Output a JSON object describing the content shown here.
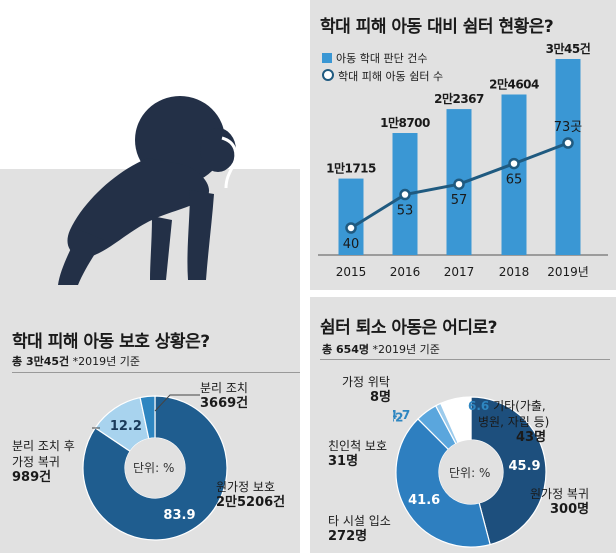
{
  "shelter_chart": {
    "title": "학대 피해 아동 대비 쉼터 현황은?",
    "legend": [
      {
        "label": "아동 학대 판단 건수",
        "color": "#3a97d4"
      },
      {
        "label": "학대 피해 아동 쉼터 수",
        "color": "#1f5a80"
      }
    ],
    "years": [
      "2015",
      "2016",
      "2017",
      "2018",
      "2019년"
    ],
    "case_labels": [
      "1만1715",
      "1만8700",
      "2만2367",
      "2만4604",
      "3만45건"
    ],
    "shelter_labels": [
      "40",
      "53",
      "57",
      "65",
      "73곳"
    ]
  },
  "protection_chart": {
    "title": "학대 피해 아동 보호 상황은?",
    "total_prefix": "총 3만45건",
    "total_note": "*2019년 기준",
    "unit": "단위: %",
    "callouts": {
      "separation": {
        "name": "분리 조치",
        "value": "3669건"
      },
      "reunion": {
        "name1": "분리 조치 후",
        "name2": "가정 복귀",
        "value": "989건"
      },
      "home": {
        "name": "원가정 보호",
        "value": "2만5206건"
      }
    }
  },
  "exit_chart": {
    "title": "쉼터 퇴소 아동은 어디로?",
    "total_prefix": "총 654명",
    "total_note": "*2019년 기준",
    "unit": "단위: %",
    "callouts": {
      "foster": {
        "name": "가정 위탁",
        "value": "8명"
      },
      "other": {
        "pct": "6.6",
        "name1": "기타(가출,",
        "name2": "병원, 자립 등)",
        "value": "43명"
      },
      "relative": {
        "name": "친인척 보호",
        "value": "31명"
      },
      "facility": {
        "name": "타 시설 입소",
        "value": "272명"
      },
      "home": {
        "name": "원가정 복귀",
        "value": "300명"
      }
    }
  },
  "chart_data": [
    {
      "type": "bar",
      "title": "학대 피해 아동 대비 쉼터 현황은?",
      "categories": [
        "2015",
        "2016",
        "2017",
        "2018",
        "2019"
      ],
      "series": [
        {
          "name": "아동 학대 판단 건수",
          "values": [
            11715,
            18700,
            22367,
            24604,
            30045
          ]
        },
        {
          "name": "학대 피해 아동 쉼터 수",
          "type": "line",
          "values": [
            40,
            53,
            57,
            65,
            73
          ]
        }
      ],
      "legend": "top-left",
      "grid": false
    },
    {
      "type": "pie",
      "title": "학대 피해 아동 보호 상황은?",
      "labels": [
        "원가정 보호",
        "분리 조치",
        "분리 조치 후 가정 복귀"
      ],
      "values": [
        83.9,
        12.2,
        3.3
      ],
      "counts": [
        "2만5206건",
        "3669건",
        "989건"
      ],
      "colors": [
        "#1f5d8f",
        "#a8d3ee",
        "#2e86c1"
      ]
    },
    {
      "type": "pie",
      "title": "쉼터 퇴소 아동은 어디로?",
      "labels": [
        "원가정 복귀",
        "타 시설 입소",
        "친인척 보호",
        "가정 위탁",
        "기타(가출, 병원, 자립 등)"
      ],
      "values": [
        45.9,
        41.6,
        4.7,
        1.2,
        6.6
      ],
      "counts": [
        "300명",
        "272명",
        "31명",
        "8명",
        "43명"
      ],
      "colors": [
        "#1d4f7d",
        "#2e7fc0",
        "#5aa6dd",
        "#9ccbec",
        "#ffffff"
      ]
    }
  ]
}
